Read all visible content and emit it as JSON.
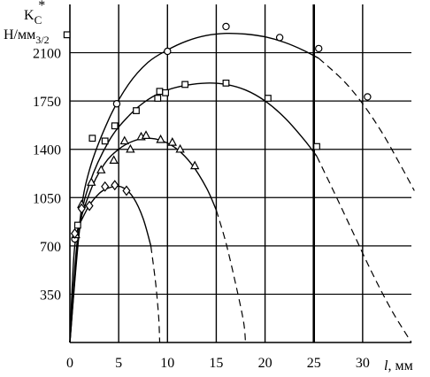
{
  "chart_data": {
    "type": "scatter",
    "title": "",
    "ylabel": {
      "main": "K",
      "subscript": "C",
      "superscript": "*",
      "unit_prefix": "Н/мм",
      "unit_exp": "3/2"
    },
    "xlabel": {
      "var": "l",
      "unit": ", мм"
    },
    "x_ticks": [
      0,
      5,
      10,
      15,
      20,
      25,
      30
    ],
    "y_ticks": [
      350,
      700,
      1050,
      1400,
      1750,
      2100
    ],
    "xlim": [
      0,
      35
    ],
    "ylim": [
      0,
      2450
    ],
    "grid": true,
    "series": [
      {
        "marker": "circle",
        "points": [
          [
            0.5,
            750
          ],
          [
            4.8,
            1730
          ],
          [
            10,
            2110
          ],
          [
            16,
            2290
          ],
          [
            21.5,
            2210
          ],
          [
            25.5,
            2130
          ],
          [
            30.5,
            1780
          ]
        ],
        "fit": [
          [
            0,
            0
          ],
          [
            1,
            860
          ],
          [
            2,
            1250
          ],
          [
            4,
            1620
          ],
          [
            6,
            1870
          ],
          [
            8,
            2030
          ],
          [
            10,
            2120
          ],
          [
            12,
            2185
          ],
          [
            14,
            2225
          ],
          [
            16,
            2240
          ],
          [
            18,
            2235
          ],
          [
            20,
            2215
          ],
          [
            22,
            2175
          ],
          [
            24,
            2115
          ],
          [
            25.5,
            2060
          ]
        ],
        "fit_dashed": [
          [
            25.5,
            2060
          ],
          [
            28,
            1900
          ],
          [
            30,
            1730
          ],
          [
            32,
            1520
          ],
          [
            34,
            1270
          ],
          [
            35.3,
            1100
          ]
        ]
      },
      {
        "marker": "square",
        "points": [
          [
            -0.3,
            2230
          ],
          [
            0.8,
            850
          ],
          [
            2.3,
            1480
          ],
          [
            3.6,
            1460
          ],
          [
            4.6,
            1570
          ],
          [
            6.8,
            1680
          ],
          [
            9,
            1770
          ],
          [
            9.2,
            1820
          ],
          [
            9.8,
            1810
          ],
          [
            11.8,
            1870
          ],
          [
            16,
            1880
          ],
          [
            20.3,
            1770
          ],
          [
            25.3,
            1420
          ]
        ],
        "fit": [
          [
            0,
            0
          ],
          [
            1,
            820
          ],
          [
            2,
            1150
          ],
          [
            4,
            1460
          ],
          [
            6,
            1640
          ],
          [
            8,
            1760
          ],
          [
            10,
            1830
          ],
          [
            12,
            1865
          ],
          [
            14,
            1880
          ],
          [
            16,
            1870
          ],
          [
            18,
            1830
          ],
          [
            20,
            1750
          ],
          [
            22,
            1630
          ],
          [
            24,
            1470
          ],
          [
            25.3,
            1350
          ]
        ],
        "fit_dashed": [
          [
            25.3,
            1350
          ],
          [
            27,
            1100
          ],
          [
            29,
            800
          ],
          [
            31,
            500
          ],
          [
            33,
            230
          ],
          [
            35,
            0
          ]
        ]
      },
      {
        "marker": "triangle",
        "points": [
          [
            0.6,
            780
          ],
          [
            1.2,
            1000
          ],
          [
            2.2,
            1160
          ],
          [
            3.2,
            1250
          ],
          [
            4.5,
            1320
          ],
          [
            5.6,
            1460
          ],
          [
            6.2,
            1400
          ],
          [
            7.3,
            1490
          ],
          [
            7.8,
            1500
          ],
          [
            9.3,
            1470
          ],
          [
            10.5,
            1450
          ],
          [
            11.3,
            1400
          ],
          [
            12.8,
            1280
          ]
        ],
        "fit": [
          [
            0,
            0
          ],
          [
            0.8,
            760
          ],
          [
            2,
            1080
          ],
          [
            3.5,
            1290
          ],
          [
            5,
            1400
          ],
          [
            6.5,
            1460
          ],
          [
            8,
            1480
          ],
          [
            9.5,
            1460
          ],
          [
            11,
            1400
          ],
          [
            12.5,
            1290
          ],
          [
            14,
            1120
          ],
          [
            15,
            960
          ]
        ],
        "fit_dashed": [
          [
            15,
            960
          ],
          [
            16,
            720
          ],
          [
            17,
            420
          ],
          [
            17.8,
            150
          ],
          [
            18,
            0
          ]
        ]
      },
      {
        "marker": "diamond",
        "points": [
          [
            0.5,
            790
          ],
          [
            1.2,
            970
          ],
          [
            2,
            990
          ],
          [
            3.6,
            1130
          ],
          [
            4.6,
            1140
          ],
          [
            5.8,
            1100
          ]
        ],
        "fit": [
          [
            0,
            0
          ],
          [
            0.5,
            700
          ],
          [
            1.5,
            930
          ],
          [
            3,
            1080
          ],
          [
            4.5,
            1130
          ],
          [
            5.5,
            1120
          ],
          [
            6.5,
            1050
          ],
          [
            7.5,
            900
          ],
          [
            8.3,
            700
          ]
        ],
        "fit_dashed": [
          [
            8.3,
            700
          ],
          [
            8.8,
            420
          ],
          [
            9.1,
            180
          ],
          [
            9.2,
            0
          ]
        ]
      }
    ]
  }
}
